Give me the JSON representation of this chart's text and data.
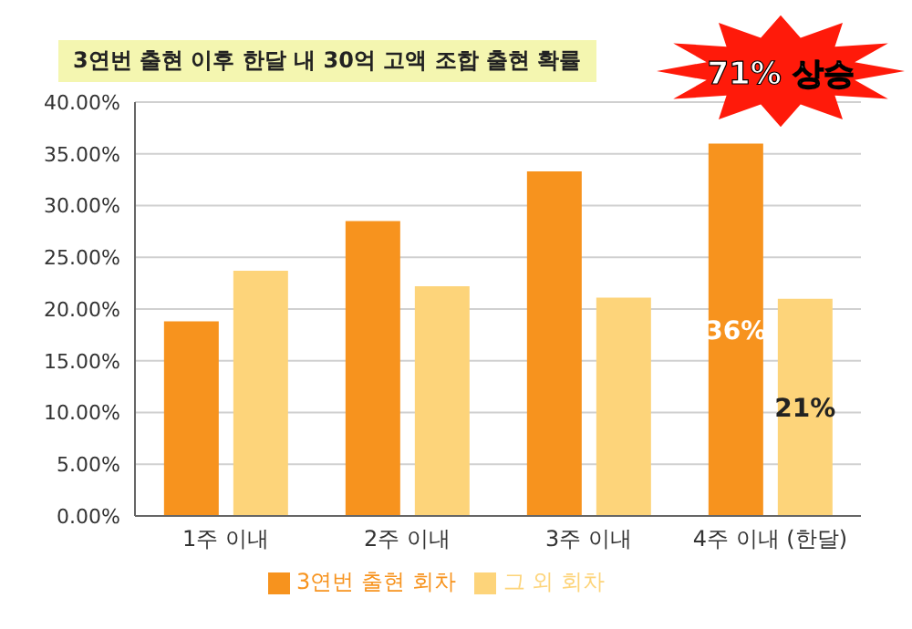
{
  "chart_data": {
    "type": "bar",
    "title": "3연번 출현 이후 한달 내 30억 고액 조합 출현 확률",
    "categories": [
      "1주 이내",
      "2주 이내",
      "3주 이내",
      "4주 이내 (한달)"
    ],
    "series": [
      {
        "name": "3연번 출현 회차",
        "color": "#f7931e",
        "values": [
          18.8,
          28.5,
          33.3,
          36
        ],
        "value_labels": [
          null,
          null,
          null,
          "36%"
        ]
      },
      {
        "name": "그 외 회차",
        "color": "#fdd47a",
        "values": [
          23.7,
          22.2,
          21.1,
          21
        ],
        "value_labels": [
          null,
          null,
          null,
          "21%"
        ]
      }
    ],
    "ylim": [
      0,
      40
    ],
    "yticks": [
      {
        "value": 0,
        "label": "0.00%"
      },
      {
        "value": 5,
        "label": "5.00%"
      },
      {
        "value": 10,
        "label": "10.00%"
      },
      {
        "value": 15,
        "label": "15.00%"
      },
      {
        "value": 20,
        "label": "20.00%"
      },
      {
        "value": 25,
        "label": "25.00%"
      },
      {
        "value": 30,
        "label": "30.00%"
      },
      {
        "value": 35,
        "label": "35.00%"
      },
      {
        "value": 40,
        "label": "40.00%"
      }
    ],
    "grid": "y",
    "legend": "bottom",
    "annotations": [
      "71% 상승"
    ]
  }
}
